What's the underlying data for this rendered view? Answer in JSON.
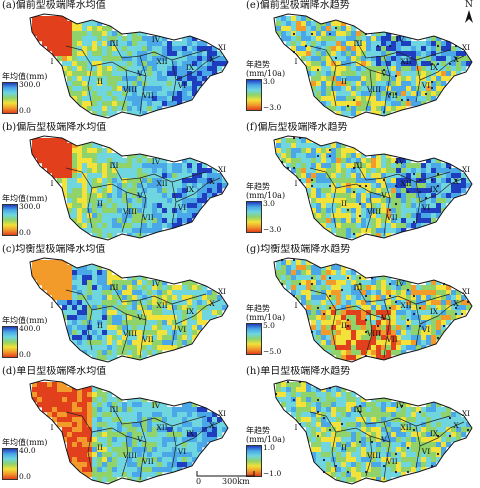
{
  "panels": [
    {
      "id": "a",
      "title": "(a)偏前型极端降水均值",
      "legend_title": "年均值(mm)",
      "vmax": "300.0",
      "vmin": "0.0",
      "scheme": "wet",
      "col": 0,
      "row": 0
    },
    {
      "id": "b",
      "title": "(b)偏后型极端降水均值",
      "legend_title": "年均值(mm)",
      "vmax": "300.0",
      "vmin": "0.0",
      "scheme": "wet",
      "col": 0,
      "row": 1
    },
    {
      "id": "c",
      "title": "(c)均衡型极端降水均值",
      "legend_title": "年均值(mm)",
      "vmax": "400.0",
      "vmin": "0.0",
      "scheme": "wet",
      "col": 0,
      "row": 2
    },
    {
      "id": "d",
      "title": "(d)单日型极端降水均值",
      "legend_title": "年均值(mm)",
      "vmax": "40.0",
      "vmin": "0.0",
      "scheme": "wet",
      "col": 0,
      "row": 3
    },
    {
      "id": "e",
      "title": "(e)偏前型极端降水趋势",
      "legend_title": "年趋势",
      "legend_unit": "(mm/10a)",
      "vmax": "3.0",
      "vmin": "−3.0",
      "scheme": "trend",
      "col": 1,
      "row": 0
    },
    {
      "id": "f",
      "title": "(f)偏后型极端降水趋势",
      "legend_title": "年趋势",
      "legend_unit": "(mm/10a)",
      "vmax": "3.0",
      "vmin": "−3.0",
      "scheme": "trend",
      "col": 1,
      "row": 1
    },
    {
      "id": "g",
      "title": "(g)均衡型极端降水趋势",
      "legend_title": "年趋势",
      "legend_unit": "(mm/10a)",
      "vmax": "5.0",
      "vmin": "−5.0",
      "scheme": "trend",
      "col": 1,
      "row": 2
    },
    {
      "id": "h",
      "title": "(h)单日型极端降水趋势",
      "legend_title": "年趋势",
      "legend_unit": "(mm/10a)",
      "vmax": "1.0",
      "vmin": "−1.0",
      "scheme": "trend",
      "col": 1,
      "row": 3
    }
  ],
  "regions": [
    "I",
    "II",
    "III",
    "IV",
    "V",
    "VI",
    "VII",
    "VIII",
    "IX",
    "X",
    "XI",
    "XII"
  ],
  "north_label": "N",
  "scale": {
    "zero": "0",
    "value": "300km"
  },
  "colors": {
    "blue": "#1f3dbf",
    "lightblue": "#4aa8e8",
    "cyan": "#6fd6e0",
    "green": "#8fd36a",
    "yellow": "#f2e23a",
    "orange": "#f29a2a",
    "red": "#e2401c"
  }
}
